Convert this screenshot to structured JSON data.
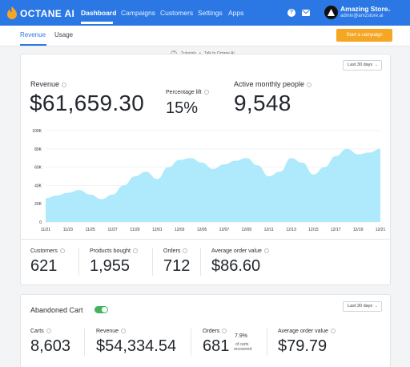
{
  "nav": {
    "brand": "OCTANE AI",
    "items": [
      "Dashboard",
      "Campaigns",
      "Customers",
      "Settings",
      "Apps"
    ],
    "help": "?",
    "store_name": "Amazing Store",
    "store_email": "admin@amzstore.ai"
  },
  "subnav": {
    "tabs": [
      "Revenue",
      "Usage"
    ],
    "cta": "Start a campaign"
  },
  "help_links": {
    "q": "?",
    "tutorials": "Tutorials",
    "dot": "•",
    "talk": "Talk to Octane AI"
  },
  "revenue_card": {
    "range": "Last 30 days",
    "revenue_label": "Revenue",
    "revenue_value": "$61,659.30",
    "lift_label": "Percentage lift",
    "lift_value": "15%",
    "amp_label": "Active monthly people",
    "amp_value": "9,548",
    "stats": [
      {
        "label": "Customers",
        "value": "621"
      },
      {
        "label": "Products bought",
        "value": "1,955"
      },
      {
        "label": "Orders",
        "value": "712"
      },
      {
        "label": "Average order value",
        "value": "$86.60"
      }
    ]
  },
  "chart_data": {
    "type": "area",
    "title": "",
    "xlabel": "",
    "ylabel": "",
    "ylim": [
      0,
      100
    ],
    "y_ticks": [
      "0",
      "20K",
      "40K",
      "60K",
      "80K",
      "100K"
    ],
    "x_ticks": [
      "11/21",
      "11/23",
      "11/25",
      "11/27",
      "11/29",
      "12/01",
      "12/03",
      "12/05",
      "12/07",
      "12/09",
      "12/11",
      "12/13",
      "12/15",
      "12/17",
      "12/19",
      "12/21"
    ],
    "x": [
      "11/21",
      "11/22",
      "11/23",
      "11/24",
      "11/25",
      "11/26",
      "11/27",
      "11/28",
      "11/29",
      "11/30",
      "12/01",
      "12/02",
      "12/03",
      "12/04",
      "12/05",
      "12/06",
      "12/07",
      "12/08",
      "12/09",
      "12/10",
      "12/11",
      "12/12",
      "12/13",
      "12/14",
      "12/15",
      "12/16",
      "12/17",
      "12/18",
      "12/19",
      "12/20",
      "12/21"
    ],
    "series": [
      {
        "values": [
          26,
          29,
          32,
          35,
          30,
          25,
          30,
          40,
          50,
          55,
          47,
          60,
          68,
          70,
          65,
          58,
          63,
          67,
          70,
          62,
          50,
          55,
          70,
          65,
          52,
          60,
          72,
          80,
          74,
          76,
          80
        ]
      }
    ],
    "color": "#aeeafc",
    "grid": true
  },
  "abandoned_card": {
    "title": "Abandoned Cart",
    "range": "Last 30 days",
    "stats": [
      {
        "label": "Carts",
        "value": "8,603"
      },
      {
        "label": "Revenue",
        "value": "$54,334.54"
      },
      {
        "label": "Orders",
        "value": "681"
      },
      {
        "label": "Average order value",
        "value": "$79.79"
      }
    ],
    "recovered_pct": "7.9%",
    "recovered_text1": "of carts",
    "recovered_text2": "recovered"
  }
}
